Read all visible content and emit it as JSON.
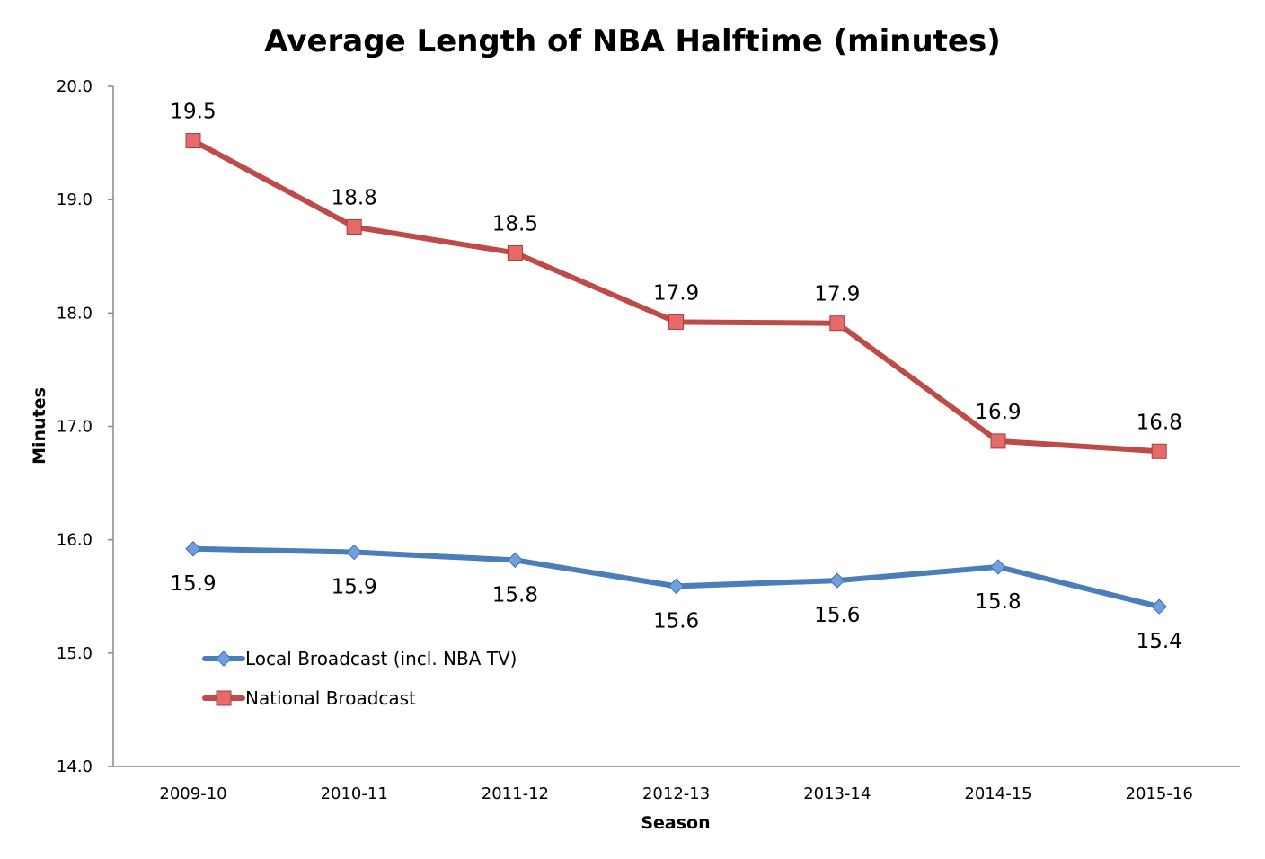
{
  "chart_data": {
    "type": "line",
    "title": "Average Length of NBA Halftime (minutes)",
    "xlabel": "Season",
    "ylabel": "Minutes",
    "ylim": [
      14.0,
      20.0
    ],
    "yticks": [
      "14.0",
      "15.0",
      "16.0",
      "17.0",
      "18.0",
      "19.0",
      "20.0"
    ],
    "categories": [
      "2009-10",
      "2010-11",
      "2011-12",
      "2012-13",
      "2013-14",
      "2014-15",
      "2015-16"
    ],
    "grid": false,
    "legend_placement": "lower-left inside",
    "series": [
      {
        "name": "Local Broadcast (incl. NBA TV)",
        "color": "#4a7ebb",
        "marker": "diamond",
        "values": [
          15.92,
          15.89,
          15.82,
          15.59,
          15.64,
          15.76,
          15.41
        ],
        "labels": [
          "15.9",
          "15.9",
          "15.8",
          "15.6",
          "15.6",
          "15.8",
          "15.4"
        ],
        "label_position": "below"
      },
      {
        "name": "National Broadcast",
        "color": "#be4b48",
        "marker": "square",
        "values": [
          19.52,
          18.76,
          18.53,
          17.92,
          17.91,
          16.87,
          16.78
        ],
        "labels": [
          "19.5",
          "18.8",
          "18.5",
          "17.9",
          "17.9",
          "16.9",
          "16.8"
        ],
        "label_position": "above"
      }
    ]
  }
}
